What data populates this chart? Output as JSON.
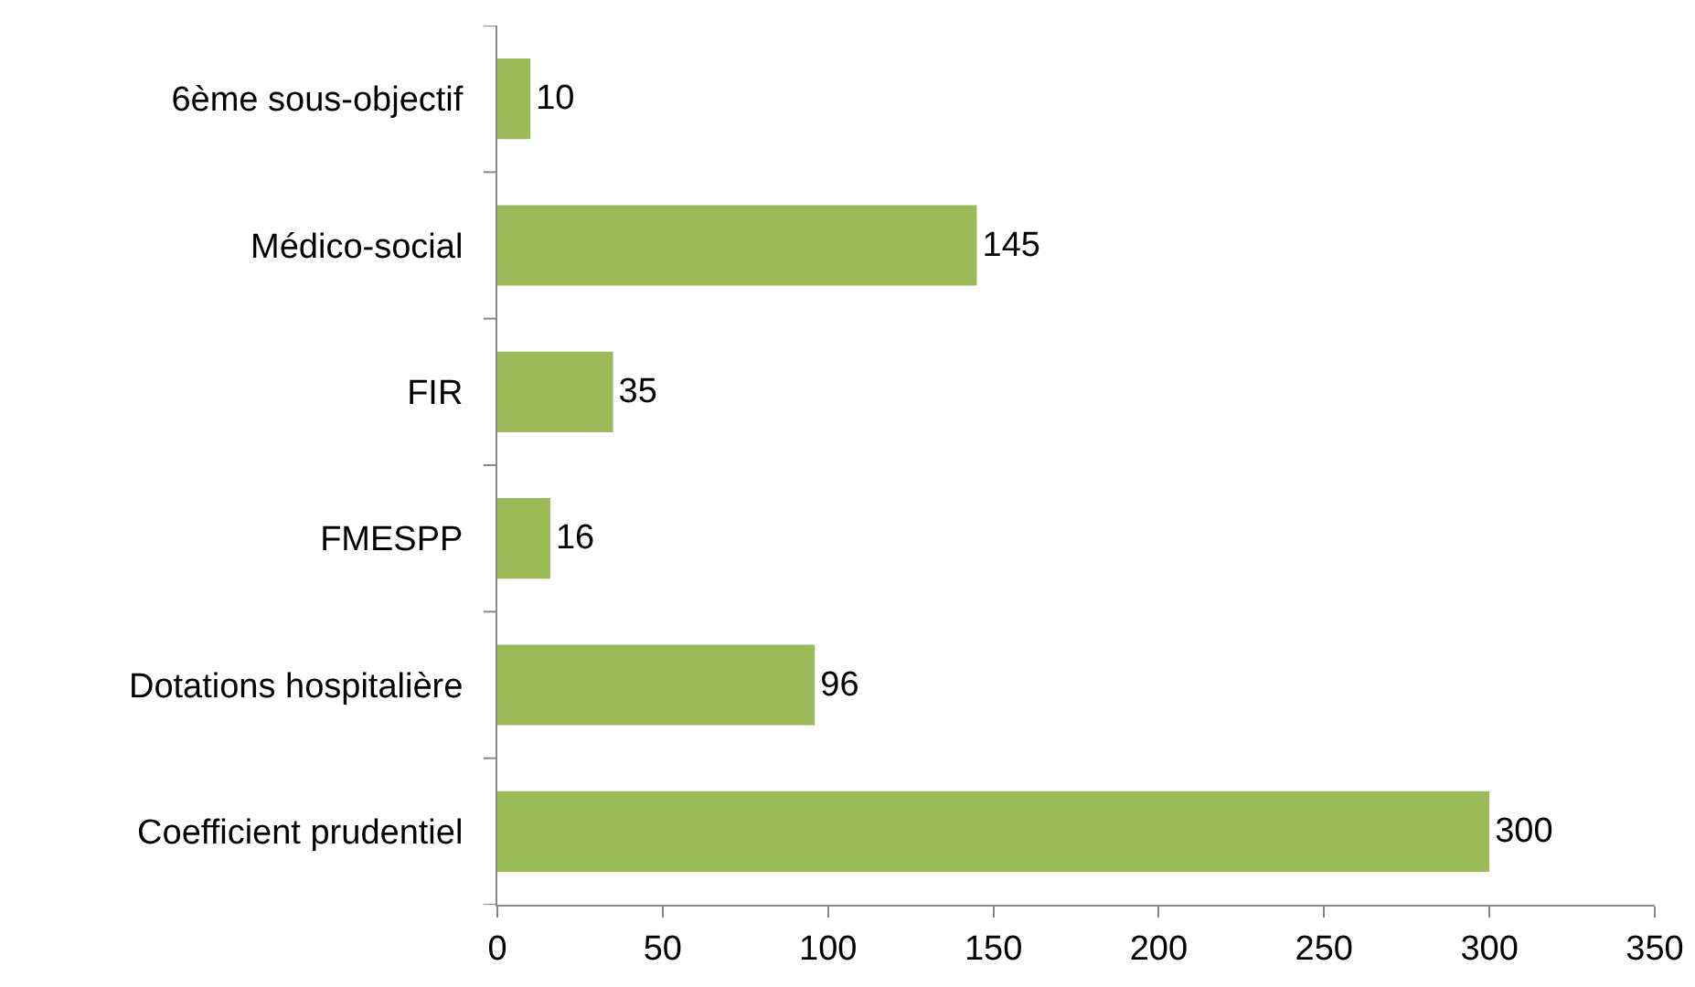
{
  "chart_data": {
    "type": "bar",
    "orientation": "horizontal",
    "categories": [
      "6ème sous-objectif",
      "Médico-social",
      "FIR",
      "FMESPP",
      "Dotations hospitalière",
      "Coefficient prudentiel"
    ],
    "values": [
      10,
      145,
      35,
      16,
      96,
      300
    ],
    "color": "#9bbb59",
    "xlim": [
      0,
      350
    ],
    "xticks": [
      0,
      50,
      100,
      150,
      200,
      250,
      300,
      350
    ],
    "data_labels": true
  }
}
